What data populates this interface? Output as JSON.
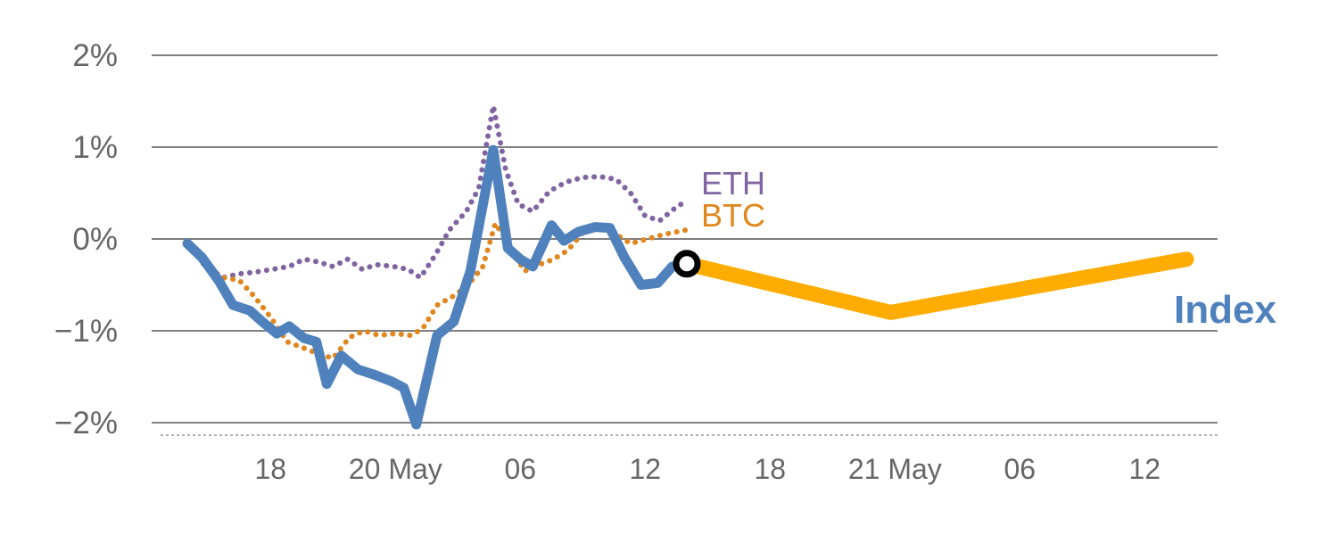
{
  "chart_data": {
    "type": "line",
    "title": "",
    "y_axis": {
      "unit": "%",
      "tick_values": [
        2,
        1,
        0,
        -1,
        -2
      ],
      "tick_labels": [
        "2%",
        "1%",
        "0%",
        "−1%",
        "−2%"
      ],
      "range": [
        -2.2,
        2.3
      ]
    },
    "x_axis": {
      "tick_positions_hours": [
        4,
        10,
        16,
        22,
        28,
        34,
        40,
        46
      ],
      "tick_labels": [
        "18",
        "20 May",
        "06",
        "12",
        "18",
        "21 May",
        "06",
        "12"
      ],
      "range_hours": [
        0,
        48
      ]
    },
    "grid": true,
    "grid_color": "#7f7f7f",
    "axis_text_color": "#666666",
    "baseline_dashed": true,
    "series": [
      {
        "id": "eth",
        "name": "ETH",
        "color": "#8064A2",
        "style": "dotted",
        "width": 6,
        "points": [
          [
            0,
            -0.05
          ],
          [
            0.8,
            -0.28
          ],
          [
            1.7,
            -0.42
          ],
          [
            2.5,
            -0.38
          ],
          [
            3.3,
            -0.36
          ],
          [
            4.1,
            -0.33
          ],
          [
            4.9,
            -0.3
          ],
          [
            5.6,
            -0.22
          ],
          [
            6.3,
            -0.25
          ],
          [
            7.0,
            -0.3
          ],
          [
            7.7,
            -0.22
          ],
          [
            8.4,
            -0.33
          ],
          [
            9.1,
            -0.28
          ],
          [
            9.9,
            -0.3
          ],
          [
            10.6,
            -0.33
          ],
          [
            11.2,
            -0.42
          ],
          [
            11.9,
            -0.18
          ],
          [
            12.6,
            0.1
          ],
          [
            13.4,
            0.3
          ],
          [
            14.0,
            0.55
          ],
          [
            14.7,
            1.45
          ],
          [
            15.3,
            0.75
          ],
          [
            15.9,
            0.38
          ],
          [
            16.6,
            0.3
          ],
          [
            17.4,
            0.52
          ],
          [
            18.2,
            0.62
          ],
          [
            19.0,
            0.67
          ],
          [
            19.8,
            0.68
          ],
          [
            20.6,
            0.65
          ],
          [
            21.3,
            0.5
          ],
          [
            22.0,
            0.25
          ],
          [
            22.7,
            0.2
          ],
          [
            23.4,
            0.33
          ],
          [
            24,
            0.42
          ]
        ]
      },
      {
        "id": "btc",
        "name": "BTC",
        "color": "#E0861C",
        "style": "dotted",
        "width": 6,
        "points": [
          [
            0,
            -0.05
          ],
          [
            0.8,
            -0.28
          ],
          [
            1.7,
            -0.42
          ],
          [
            2.5,
            -0.45
          ],
          [
            3.2,
            -0.62
          ],
          [
            4.0,
            -0.85
          ],
          [
            4.8,
            -1.12
          ],
          [
            5.5,
            -1.18
          ],
          [
            6.3,
            -1.25
          ],
          [
            7.0,
            -1.3
          ],
          [
            7.8,
            -1.07
          ],
          [
            8.5,
            -1.0
          ],
          [
            9.2,
            -1.05
          ],
          [
            10.0,
            -1.03
          ],
          [
            10.7,
            -1.05
          ],
          [
            11.3,
            -0.98
          ],
          [
            12.0,
            -0.72
          ],
          [
            12.8,
            -0.62
          ],
          [
            13.5,
            -0.5
          ],
          [
            14.2,
            -0.3
          ],
          [
            14.8,
            0.17
          ],
          [
            15.5,
            -0.08
          ],
          [
            16.2,
            -0.35
          ],
          [
            16.9,
            -0.28
          ],
          [
            17.6,
            -0.22
          ],
          [
            18.3,
            -0.12
          ],
          [
            19.1,
            0.1
          ],
          [
            19.9,
            0.13
          ],
          [
            20.6,
            0.05
          ],
          [
            21.3,
            -0.05
          ],
          [
            22.1,
            0.0
          ],
          [
            22.9,
            0.05
          ],
          [
            24,
            0.1
          ]
        ]
      },
      {
        "id": "index",
        "name": "Index",
        "color": "#4F81BD",
        "style": "solid",
        "width": 11,
        "points": [
          [
            0,
            -0.05
          ],
          [
            0.7,
            -0.2
          ],
          [
            1.5,
            -0.45
          ],
          [
            2.2,
            -0.72
          ],
          [
            3.0,
            -0.78
          ],
          [
            3.6,
            -0.9
          ],
          [
            4.3,
            -1.03
          ],
          [
            4.9,
            -0.95
          ],
          [
            5.6,
            -1.08
          ],
          [
            6.2,
            -1.12
          ],
          [
            6.7,
            -1.58
          ],
          [
            7.4,
            -1.27
          ],
          [
            8.2,
            -1.42
          ],
          [
            9.0,
            -1.48
          ],
          [
            9.8,
            -1.55
          ],
          [
            10.4,
            -1.62
          ],
          [
            11.0,
            -2.02
          ],
          [
            12.0,
            -1.05
          ],
          [
            12.8,
            -0.9
          ],
          [
            13.6,
            -0.35
          ],
          [
            14.7,
            0.97
          ],
          [
            15.4,
            -0.1
          ],
          [
            16.0,
            -0.22
          ],
          [
            16.6,
            -0.3
          ],
          [
            17.5,
            0.15
          ],
          [
            18.1,
            -0.02
          ],
          [
            18.8,
            0.08
          ],
          [
            19.6,
            0.13
          ],
          [
            20.3,
            0.12
          ],
          [
            21.0,
            -0.2
          ],
          [
            21.8,
            -0.5
          ],
          [
            22.6,
            -0.48
          ],
          [
            23.3,
            -0.3
          ],
          [
            24,
            -0.27
          ]
        ]
      },
      {
        "id": "forecast",
        "name": "Index forecast",
        "color": "#FFAC00",
        "style": "solid",
        "width": 17,
        "points": [
          [
            24,
            -0.27
          ],
          [
            33.8,
            -0.8
          ],
          [
            48,
            -0.22
          ]
        ]
      }
    ],
    "marker": {
      "x": 24,
      "y": -0.27,
      "shape": "open-circle",
      "color": "#000000",
      "fill": "#ffffff"
    },
    "series_labels": [
      {
        "id": "eth",
        "text": "ETH",
        "color": "#8064A2"
      },
      {
        "id": "btc",
        "text": "BTC",
        "color": "#E0861C"
      },
      {
        "id": "index",
        "text": "Index",
        "color": "#4F81BD"
      }
    ]
  }
}
